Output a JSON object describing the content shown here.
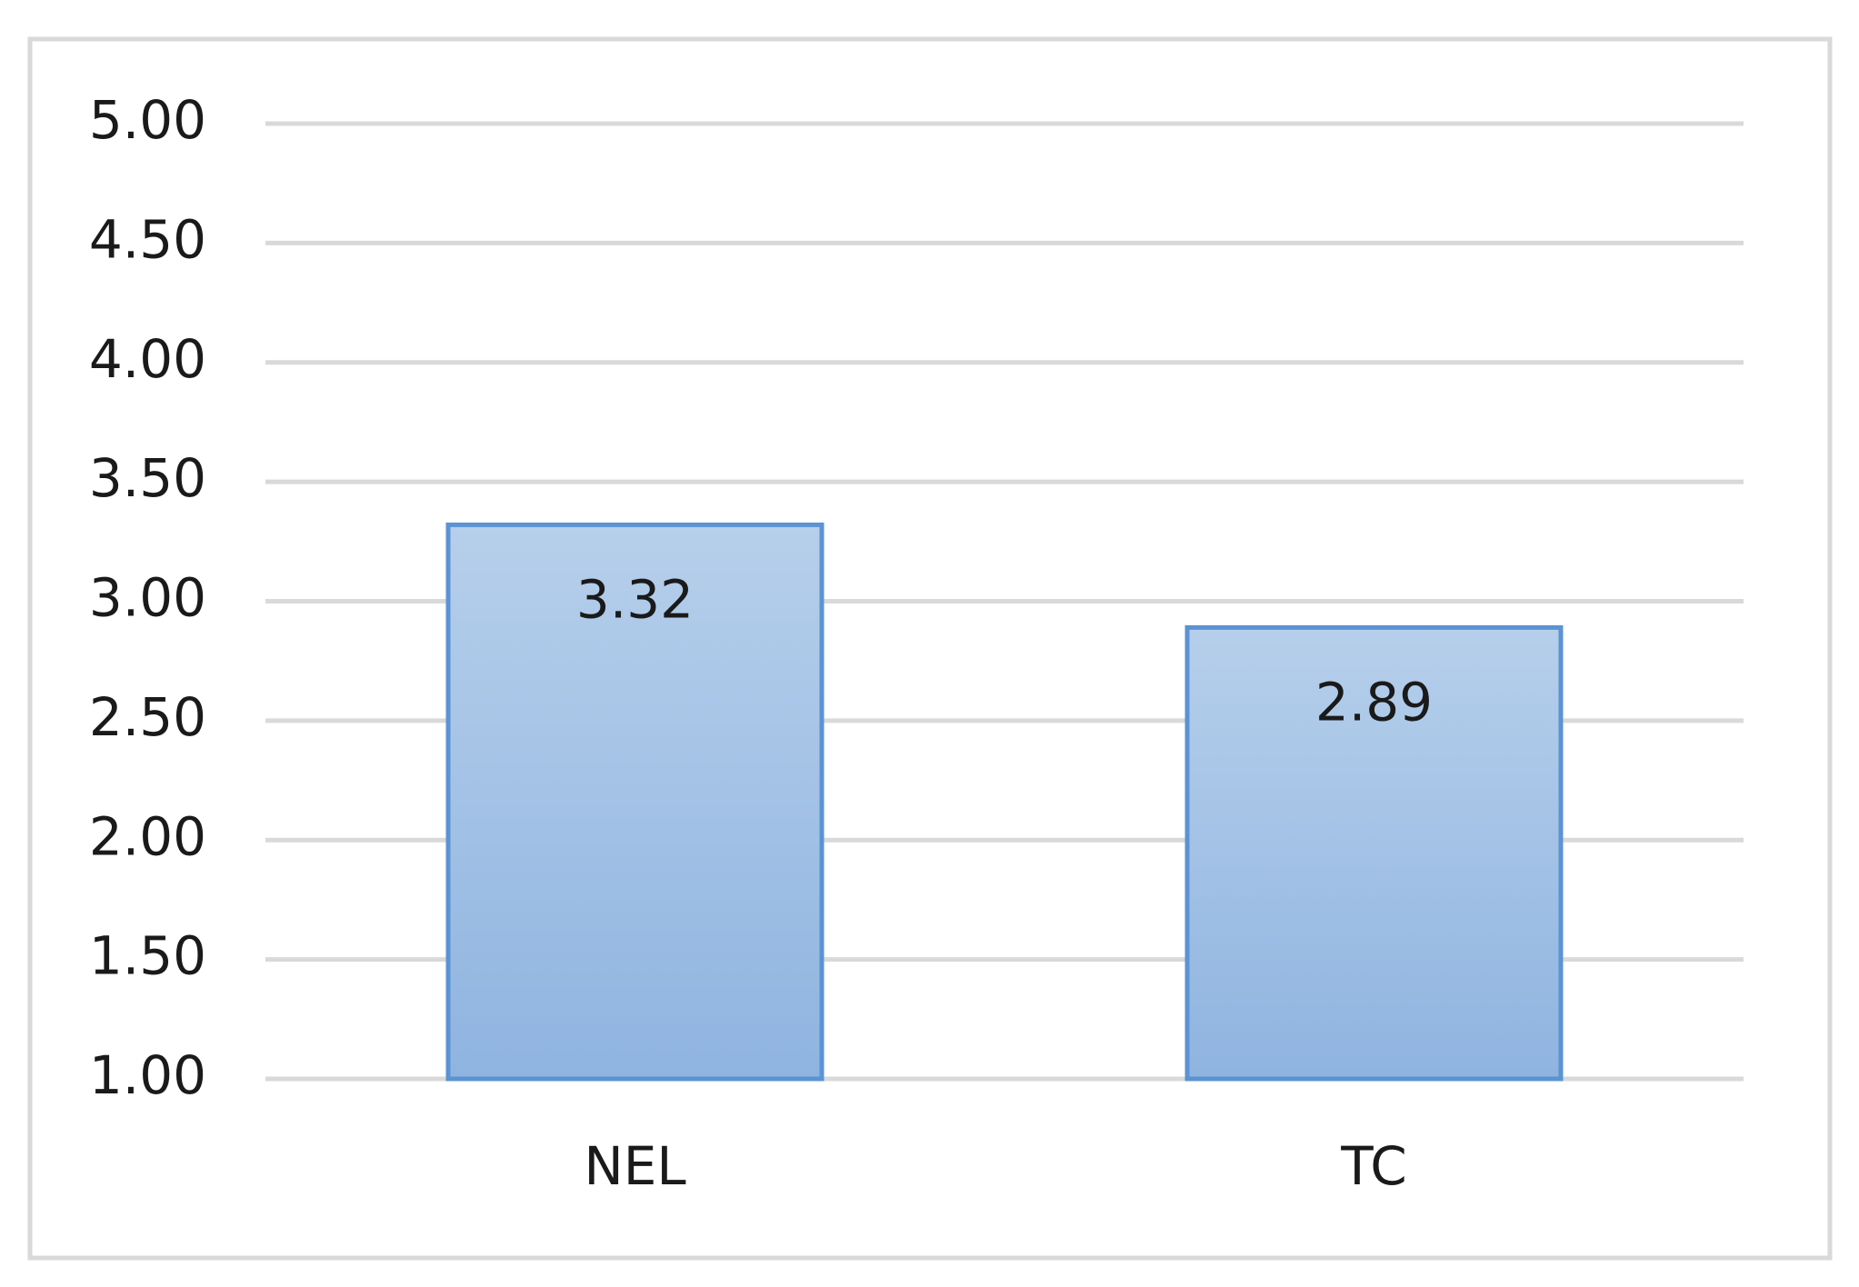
{
  "chart_data": {
    "type": "bar",
    "categories": [
      "NEL",
      "TC"
    ],
    "values": [
      3.32,
      2.89
    ],
    "color": "#8fb4e0",
    "edge_color": "#5b93d3",
    "ylim": [
      1,
      5
    ],
    "yticks": [
      {
        "value": 1,
        "label": "1.00"
      },
      {
        "value": 1.5,
        "label": "1.50"
      },
      {
        "value": 2,
        "label": "2.00"
      },
      {
        "value": 2.5,
        "label": "2.50"
      },
      {
        "value": 3,
        "label": "3.00"
      },
      {
        "value": 3.5,
        "label": "3.50"
      },
      {
        "value": 4,
        "label": "4.00"
      },
      {
        "value": 4.5,
        "label": "4.50"
      },
      {
        "value": 5,
        "label": "5.00"
      }
    ],
    "grid": true
  }
}
